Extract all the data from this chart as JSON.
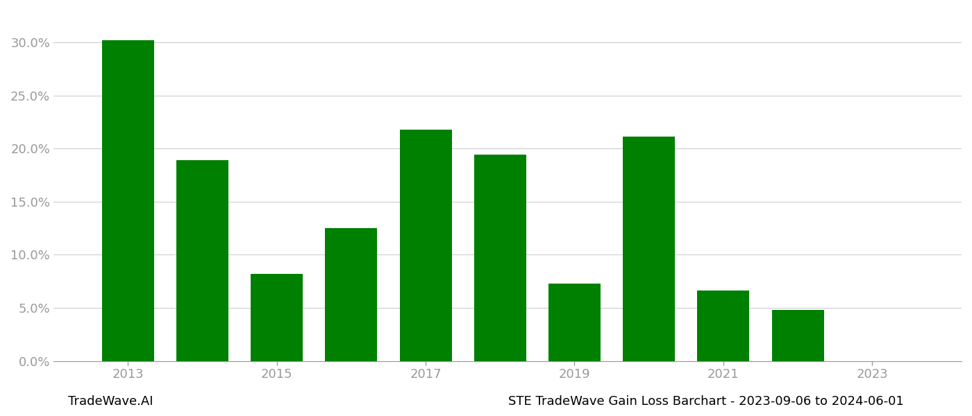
{
  "years": [
    2013,
    2014,
    2015,
    2016,
    2017,
    2018,
    2019,
    2020,
    2021,
    2022,
    2023
  ],
  "values": [
    0.302,
    0.189,
    0.082,
    0.125,
    0.218,
    0.194,
    0.073,
    0.211,
    0.066,
    0.048,
    0.0
  ],
  "bar_color": "#008000",
  "background_color": "#ffffff",
  "grid_color": "#cccccc",
  "axis_label_color": "#999999",
  "title_text": "STE TradeWave Gain Loss Barchart - 2023-09-06 to 2024-06-01",
  "watermark_text": "TradeWave.AI",
  "ylim": [
    0,
    0.33
  ],
  "yticks": [
    0.0,
    0.05,
    0.1,
    0.15,
    0.2,
    0.25,
    0.3
  ],
  "tick_fontsize": 13,
  "title_fontsize": 13,
  "watermark_fontsize": 13,
  "xtick_positions": [
    2013,
    2015,
    2017,
    2019,
    2021,
    2023
  ],
  "xtick_labels": [
    "2013",
    "2015",
    "2017",
    "2019",
    "2021",
    "2023"
  ],
  "xlim": [
    2012.0,
    2024.2
  ]
}
